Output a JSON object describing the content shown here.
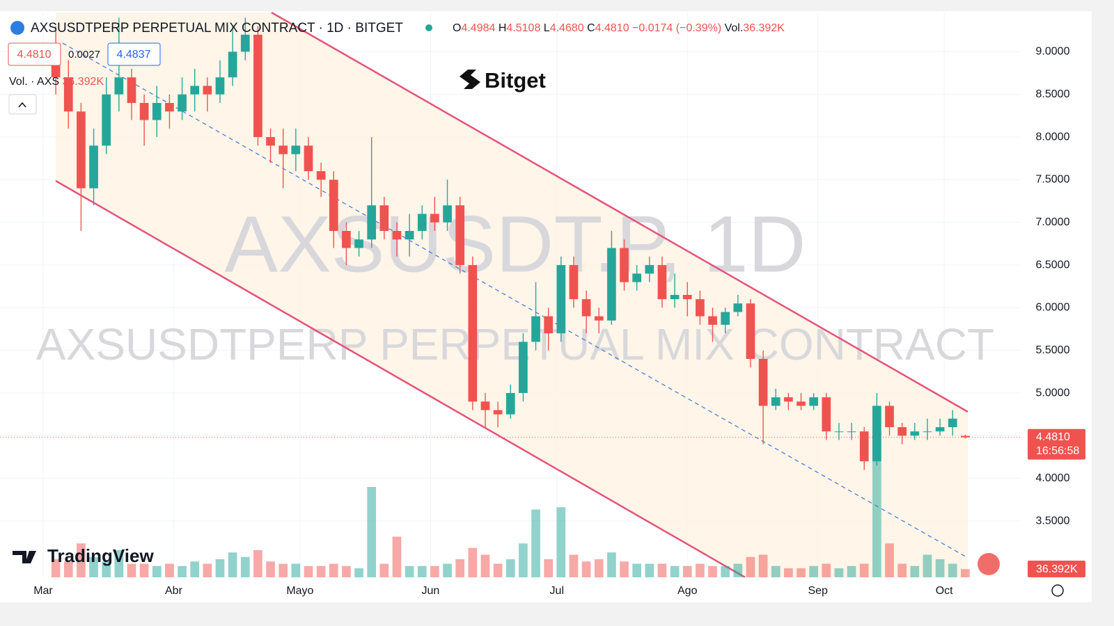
{
  "chart_data": {
    "type": "candlestick",
    "x": [
      3,
      6,
      9,
      12,
      15,
      18,
      21,
      24,
      27,
      30,
      33,
      36,
      39,
      42,
      45,
      48,
      51,
      54,
      57,
      60,
      63,
      66,
      69,
      72,
      75,
      78,
      81,
      84,
      87,
      90,
      93,
      96,
      99,
      102,
      105,
      108,
      111,
      114,
      117,
      120,
      123,
      126,
      129,
      132,
      135,
      138,
      141,
      144,
      147,
      150,
      153,
      156,
      159,
      162,
      165,
      168,
      171,
      174,
      177,
      180,
      183,
      186,
      189,
      192,
      195,
      198,
      201,
      204,
      207,
      210,
      213,
      216,
      219
    ],
    "open": [
      8.9,
      8.7,
      8.3,
      7.4,
      7.9,
      8.5,
      8.7,
      8.4,
      8.2,
      8.4,
      8.3,
      8.5,
      8.6,
      8.5,
      8.7,
      9.0,
      9.2,
      8.0,
      7.9,
      7.8,
      7.9,
      7.6,
      7.5,
      6.9,
      6.7,
      6.8,
      7.2,
      6.9,
      6.8,
      6.9,
      7.1,
      7.0,
      7.2,
      6.5,
      4.9,
      4.8,
      4.75,
      5.0,
      5.6,
      5.9,
      5.7,
      6.5,
      6.1,
      5.9,
      5.85,
      6.7,
      6.3,
      6.4,
      6.5,
      6.1,
      6.15,
      6.1,
      5.9,
      5.8,
      5.95,
      6.05,
      5.4,
      4.85,
      4.95,
      4.9,
      4.85,
      4.95,
      4.55,
      4.55,
      4.55,
      4.2,
      4.85,
      4.6,
      4.5,
      4.55,
      4.55,
      4.6,
      4.4984
    ],
    "high": [
      9.3,
      8.9,
      8.4,
      8.1,
      8.7,
      9.4,
      8.8,
      8.5,
      8.6,
      8.5,
      8.7,
      8.8,
      8.7,
      8.9,
      9.3,
      9.4,
      9.3,
      8.1,
      8.1,
      8.1,
      8.0,
      7.7,
      7.6,
      7.0,
      6.9,
      8.0,
      7.3,
      7.0,
      7.1,
      7.2,
      7.3,
      7.5,
      7.3,
      6.6,
      5.0,
      4.9,
      5.1,
      5.7,
      6.3,
      6.0,
      6.6,
      6.6,
      6.2,
      6.0,
      6.9,
      6.8,
      6.5,
      6.6,
      6.6,
      6.4,
      6.3,
      6.2,
      6.0,
      6.0,
      6.15,
      6.1,
      5.5,
      5.05,
      5.0,
      5.0,
      5.0,
      5.0,
      4.65,
      4.65,
      4.6,
      5.0,
      4.9,
      4.65,
      4.65,
      4.7,
      4.7,
      4.8,
      4.5108
    ],
    "low": [
      8.5,
      8.1,
      6.9,
      7.2,
      7.8,
      8.3,
      8.2,
      7.9,
      8.0,
      8.1,
      8.2,
      8.3,
      8.3,
      8.4,
      8.6,
      8.9,
      7.9,
      7.7,
      7.4,
      7.6,
      7.5,
      7.3,
      6.7,
      6.5,
      6.6,
      6.7,
      6.8,
      6.6,
      6.6,
      6.8,
      6.9,
      6.9,
      6.4,
      4.8,
      4.6,
      4.6,
      4.7,
      4.9,
      5.5,
      5.5,
      5.6,
      6.0,
      5.7,
      5.7,
      5.8,
      6.2,
      6.2,
      6.3,
      6.0,
      6.0,
      5.9,
      5.8,
      5.6,
      5.7,
      5.9,
      5.3,
      4.4,
      4.8,
      4.8,
      4.8,
      4.8,
      4.45,
      4.45,
      4.45,
      4.1,
      4.15,
      4.5,
      4.4,
      4.45,
      4.45,
      4.5,
      4.5,
      4.468
    ],
    "close": [
      8.7,
      8.3,
      7.4,
      7.9,
      8.5,
      8.7,
      8.4,
      8.2,
      8.4,
      8.3,
      8.5,
      8.6,
      8.5,
      8.7,
      9.0,
      9.2,
      8.0,
      7.9,
      7.8,
      7.9,
      7.6,
      7.5,
      6.9,
      6.7,
      6.8,
      7.2,
      6.9,
      6.8,
      6.9,
      7.1,
      7.0,
      7.2,
      6.5,
      4.9,
      4.8,
      4.75,
      5.0,
      5.6,
      5.9,
      5.7,
      6.5,
      6.1,
      5.9,
      5.85,
      6.7,
      6.3,
      6.4,
      6.5,
      6.1,
      6.15,
      6.1,
      5.9,
      5.8,
      5.95,
      6.05,
      5.4,
      4.85,
      4.95,
      4.9,
      4.85,
      4.95,
      4.55,
      4.55,
      4.55,
      4.2,
      4.85,
      4.6,
      4.5,
      4.55,
      4.55,
      4.6,
      4.7,
      4.481
    ],
    "volume": [
      80000,
      70000,
      150000,
      90000,
      70000,
      120000,
      60000,
      60000,
      50000,
      60000,
      50000,
      70000,
      60000,
      80000,
      110000,
      90000,
      120000,
      70000,
      60000,
      60000,
      50000,
      50000,
      60000,
      50000,
      40000,
      400000,
      60000,
      180000,
      50000,
      50000,
      50000,
      60000,
      80000,
      130000,
      100000,
      60000,
      80000,
      150000,
      300000,
      80000,
      310000,
      100000,
      70000,
      80000,
      110000,
      70000,
      60000,
      60000,
      60000,
      50000,
      50000,
      60000,
      50000,
      50000,
      60000,
      90000,
      100000,
      50000,
      40000,
      40000,
      50000,
      60000,
      40000,
      50000,
      60000,
      650000,
      150000,
      60000,
      50000,
      100000,
      80000,
      60000,
      36392
    ],
    "up_color": "#26a69a",
    "down_color": "#ef5350",
    "xlim": [
      -10.25,
      232
    ],
    "xticks": [
      {
        "value": 0,
        "label": "Mar"
      },
      {
        "value": 31,
        "label": "Abr"
      },
      {
        "value": 61,
        "label": "Mayo"
      },
      {
        "value": 92,
        "label": "Jun"
      },
      {
        "value": 122,
        "label": "Jul"
      },
      {
        "value": 153,
        "label": "Ago"
      },
      {
        "value": 184,
        "label": "Sep"
      },
      {
        "value": 214,
        "label": "Oct"
      }
    ],
    "ylim": [
      2.84,
      9.46
    ],
    "yticks": [
      {
        "value": 3.5,
        "label": "3.5000"
      },
      {
        "value": 4,
        "label": "4.0000"
      },
      {
        "value": 4.5,
        "label": "4.5000"
      },
      {
        "value": 5,
        "label": "5.0000"
      },
      {
        "value": 5.5,
        "label": "5.5000"
      },
      {
        "value": 6,
        "label": "6.0000"
      },
      {
        "value": 6.5,
        "label": "6.5000"
      },
      {
        "value": 7,
        "label": "7.0000"
      },
      {
        "value": 7.5,
        "label": "7.5000"
      },
      {
        "value": 8,
        "label": "8.0000"
      },
      {
        "value": 8.5,
        "label": "8.5000"
      },
      {
        "value": 9,
        "label": "9.0000"
      }
    ],
    "volume_ylim": [
      0,
      800000
    ],
    "grid": true,
    "price_badge": {
      "price": "4.4810",
      "countdown": "16:56:58"
    },
    "volume_badge": "36.392K"
  },
  "header": {
    "title": "AXSUSDTPERP PERPETUAL MIX CONTRACT · 1D · BITGET",
    "ohlc": [
      {
        "label": "O",
        "value": "4.4984"
      },
      {
        "label": "H",
        "value": "4.5108"
      },
      {
        "label": "L",
        "value": "4.4680"
      },
      {
        "label": "C",
        "value": "4.4810"
      }
    ],
    "change": "−0.0174 (−0.39%)",
    "volume_label": "Vol.",
    "volume_value": "36.392K"
  },
  "boxes": {
    "bid": "4.4810",
    "spread": "0.0027",
    "ask": "4.4837"
  },
  "volume_legend": {
    "label": "Vol. · AXS",
    "value": "36.392K"
  },
  "watermark": [
    "AXSUSDT.P, 1D",
    "AXSUSDTPERP PERPETUAL MIX CONTRACT"
  ],
  "brand": "Bitget",
  "platform": "TradingView"
}
